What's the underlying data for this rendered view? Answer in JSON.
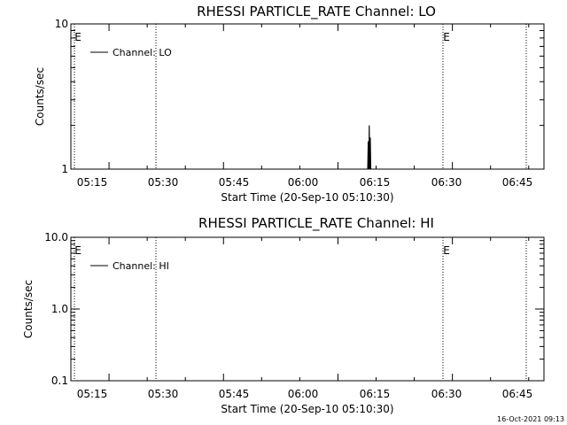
{
  "timestamp": "16-Oct-2021 09:13",
  "chart_data": [
    {
      "type": "line",
      "title": "RHESSI PARTICLE_RATE Channel: LO",
      "xlabel": "Start Time (20-Sep-10 05:10:30)",
      "ylabel": "Counts/sec",
      "y_scale": "log",
      "ylim": [
        1,
        10
      ],
      "y_ticks": [
        {
          "value": 1,
          "label": "1"
        },
        {
          "value": 10,
          "label": "10"
        }
      ],
      "xlim_minutes": [
        310,
        372
      ],
      "x_ticks": [
        {
          "minutes": 315,
          "label": "05:15"
        },
        {
          "minutes": 330,
          "label": "05:30"
        },
        {
          "minutes": 345,
          "label": "05:45"
        },
        {
          "minutes": 360,
          "label": "06:00"
        },
        {
          "minutes": 375,
          "label": "06:15"
        },
        {
          "minutes": 390,
          "label": "06:30"
        },
        {
          "minutes": 405,
          "label": "06:45"
        }
      ],
      "legend": {
        "label": "Channel: LO",
        "position": "top-left"
      },
      "series": [
        {
          "name": "Channel: LO",
          "x": [
            374.5,
            374.55,
            374.6,
            374.65,
            374.7,
            374.75,
            374.8
          ],
          "y": [
            1.0,
            1.55,
            1.0,
            2.0,
            1.0,
            1.65,
            1.0
          ]
        }
      ],
      "event_lines": [
        {
          "minutes": 312.3,
          "label": "E"
        },
        {
          "minutes": 328.8,
          "label": ""
        },
        {
          "minutes": 387.9,
          "label": "E"
        },
        {
          "minutes": 404.9,
          "label": ""
        }
      ]
    },
    {
      "type": "line",
      "title": "RHESSI PARTICLE_RATE Channel: HI",
      "xlabel": "Start Time (20-Sep-10 05:10:30)",
      "ylabel": "Counts/sec",
      "y_scale": "log",
      "ylim": [
        0.1,
        10
      ],
      "y_ticks": [
        {
          "value": 0.1,
          "label": "0.1"
        },
        {
          "value": 1,
          "label": "1.0"
        },
        {
          "value": 10,
          "label": "10.0"
        }
      ],
      "xlim_minutes": [
        310,
        372
      ],
      "x_ticks": [
        {
          "minutes": 315,
          "label": "05:15"
        },
        {
          "minutes": 330,
          "label": "05:30"
        },
        {
          "minutes": 345,
          "label": "05:45"
        },
        {
          "minutes": 360,
          "label": "06:00"
        },
        {
          "minutes": 375,
          "label": "06:15"
        },
        {
          "minutes": 390,
          "label": "06:30"
        },
        {
          "minutes": 405,
          "label": "06:45"
        }
      ],
      "legend": {
        "label": "Channel: HI",
        "position": "top-left"
      },
      "series": [
        {
          "name": "Channel: HI",
          "x": [],
          "y": []
        }
      ],
      "event_lines": [
        {
          "minutes": 312.3,
          "label": "E"
        },
        {
          "minutes": 328.8,
          "label": ""
        },
        {
          "minutes": 387.9,
          "label": "E"
        },
        {
          "minutes": 404.9,
          "label": ""
        }
      ]
    }
  ]
}
